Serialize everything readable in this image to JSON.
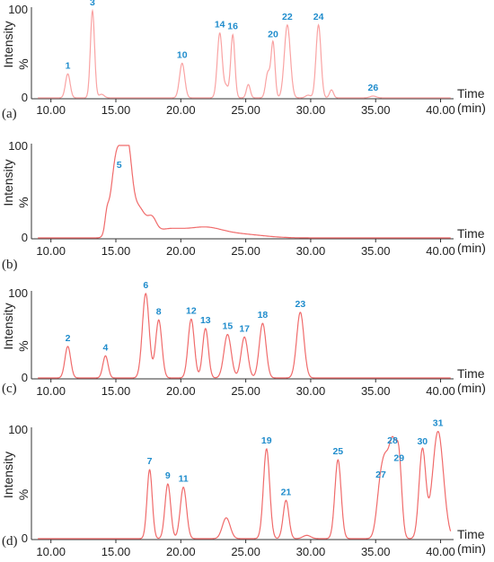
{
  "colors": {
    "trace": "#f06b6b",
    "peak_label": "#1f8ccc",
    "axis": "#333333"
  },
  "axis_text": {
    "time": "Time",
    "unit": "(min)",
    "intensity": "Intensity",
    "percent": "%"
  },
  "chart_data": [
    {
      "panel": "(a)",
      "type": "line",
      "xlim": [
        8.5,
        41
      ],
      "x_ticks": [
        "10.00",
        "15.00",
        "20.00",
        "25.00",
        "30.00",
        "35.00",
        "40.00"
      ],
      "y_ticks": [
        "100",
        "0"
      ],
      "ylim": [
        0,
        100
      ],
      "trace_color": "#f9a3a3",
      "baseline": 0,
      "peaks": [
        {
          "label": "1",
          "x": 11.3,
          "y": 27,
          "w": 0.18
        },
        {
          "label": "3",
          "x": 13.2,
          "y": 98,
          "w": 0.16
        },
        {
          "label": "",
          "x": 13.9,
          "y": 4,
          "w": 0.2
        },
        {
          "label": "10",
          "x": 20.1,
          "y": 39,
          "w": 0.2
        },
        {
          "label": "14",
          "x": 23.0,
          "y": 73,
          "w": 0.19
        },
        {
          "label": "",
          "x": 23.5,
          "y": 12,
          "w": 0.15
        },
        {
          "label": "16",
          "x": 24.0,
          "y": 71,
          "w": 0.16
        },
        {
          "label": "",
          "x": 25.2,
          "y": 15,
          "w": 0.15
        },
        {
          "label": "",
          "x": 26.7,
          "y": 28,
          "w": 0.17
        },
        {
          "label": "20",
          "x": 27.1,
          "y": 62,
          "w": 0.15
        },
        {
          "label": "22",
          "x": 28.2,
          "y": 82,
          "w": 0.23
        },
        {
          "label": "",
          "x": 29.8,
          "y": 3,
          "w": 0.2
        },
        {
          "label": "24",
          "x": 30.6,
          "y": 82,
          "w": 0.19
        },
        {
          "label": "",
          "x": 31.6,
          "y": 9,
          "w": 0.15
        },
        {
          "label": "26",
          "x": 34.8,
          "y": 2,
          "w": 0.25
        }
      ]
    },
    {
      "panel": "(b)",
      "type": "line",
      "xlim": [
        8.5,
        41
      ],
      "x_ticks": [
        "10.00",
        "15.00",
        "20.00",
        "25.00",
        "30.00",
        "35.00",
        "40.00"
      ],
      "y_ticks": [
        "100",
        "0"
      ],
      "ylim": [
        0,
        100
      ],
      "trace_color": "#f06b6b",
      "baseline": 0,
      "peaks": [
        {
          "label": "",
          "x": 14.3,
          "y": 16,
          "w": 0.15
        },
        {
          "label": "",
          "x": 14.8,
          "y": 42,
          "w": 0.35
        },
        {
          "label": "5",
          "x": 15.25,
          "y": 70,
          "w": 0.35
        },
        {
          "label": "",
          "x": 15.9,
          "y": 84,
          "w": 0.32
        },
        {
          "label": "",
          "x": 16.7,
          "y": 32,
          "w": 0.55
        },
        {
          "label": "",
          "x": 17.8,
          "y": 14,
          "w": 0.32
        },
        {
          "label": "",
          "x": 19.0,
          "y": 9,
          "w": 1.2
        },
        {
          "label": "",
          "x": 21.8,
          "y": 10,
          "w": 1.3
        },
        {
          "label": "",
          "x": 24.5,
          "y": 4,
          "w": 1.8
        }
      ]
    },
    {
      "panel": "(c)",
      "type": "line",
      "xlim": [
        8.5,
        41
      ],
      "x_ticks": [
        "10.00",
        "15.00",
        "20.00",
        "25.00",
        "30.00",
        "35.00",
        "40.00"
      ],
      "y_ticks": [
        "100",
        "0"
      ],
      "ylim": [
        0,
        100
      ],
      "trace_color": "#f06b6b",
      "baseline": 0,
      "peaks": [
        {
          "label": "2",
          "x": 11.3,
          "y": 37,
          "w": 0.22
        },
        {
          "label": "4",
          "x": 14.2,
          "y": 26,
          "w": 0.2
        },
        {
          "label": "6",
          "x": 17.3,
          "y": 99,
          "w": 0.26
        },
        {
          "label": "8",
          "x": 18.3,
          "y": 68,
          "w": 0.24
        },
        {
          "label": "12",
          "x": 20.8,
          "y": 69,
          "w": 0.24
        },
        {
          "label": "13",
          "x": 21.9,
          "y": 58,
          "w": 0.22
        },
        {
          "label": "15",
          "x": 23.6,
          "y": 51,
          "w": 0.28
        },
        {
          "label": "17",
          "x": 24.9,
          "y": 48,
          "w": 0.26
        },
        {
          "label": "18",
          "x": 26.3,
          "y": 64,
          "w": 0.26
        },
        {
          "label": "23",
          "x": 29.2,
          "y": 77,
          "w": 0.28
        }
      ]
    },
    {
      "panel": "(d)",
      "type": "line",
      "xlim": [
        8.5,
        41
      ],
      "x_ticks": [
        "10.00",
        "15.00",
        "20.00",
        "25.00",
        "30.00",
        "35.00",
        "40.00"
      ],
      "y_ticks": [
        "100",
        "0"
      ],
      "ylim": [
        0,
        100
      ],
      "trace_color": "#f06b6b",
      "baseline": 0,
      "peaks": [
        {
          "label": "7",
          "x": 17.6,
          "y": 63,
          "w": 0.2
        },
        {
          "label": "9",
          "x": 19.0,
          "y": 50,
          "w": 0.22
        },
        {
          "label": "11",
          "x": 20.2,
          "y": 47,
          "w": 0.24
        },
        {
          "label": "",
          "x": 23.5,
          "y": 19,
          "w": 0.3
        },
        {
          "label": "19",
          "x": 26.6,
          "y": 82,
          "w": 0.24
        },
        {
          "label": "21",
          "x": 28.1,
          "y": 35,
          "w": 0.22
        },
        {
          "label": "",
          "x": 29.7,
          "y": 3,
          "w": 0.3
        },
        {
          "label": "25",
          "x": 32.1,
          "y": 72,
          "w": 0.24
        },
        {
          "label": "27",
          "x": 35.4,
          "y": 51,
          "w": 0.3
        },
        {
          "label": "",
          "x": 35.8,
          "y": 42,
          "w": 0.25
        },
        {
          "label": "28",
          "x": 36.3,
          "y": 82,
          "w": 0.28
        },
        {
          "label": "29",
          "x": 36.8,
          "y": 66,
          "w": 0.22
        },
        {
          "label": "30",
          "x": 38.6,
          "y": 81,
          "w": 0.26
        },
        {
          "label": "31",
          "x": 39.8,
          "y": 98,
          "w": 0.42
        }
      ]
    }
  ]
}
